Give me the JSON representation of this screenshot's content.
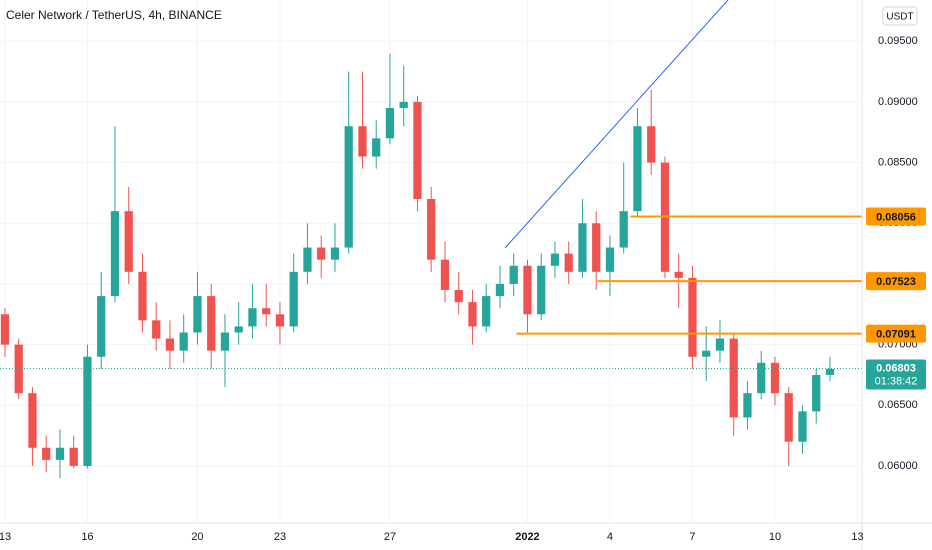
{
  "chart_data": {
    "type": "candlestick",
    "title": "Celer Network / TetherUS, 4h, BINANCE",
    "currency": "USDT",
    "up_color": "#26a69a",
    "down_color": "#ef5350",
    "grid": true,
    "x": [
      0,
      1,
      2,
      3,
      4,
      5,
      6,
      7,
      8,
      9,
      10,
      11,
      12,
      13,
      14,
      15,
      16,
      17,
      18,
      19,
      20,
      21,
      22,
      23,
      24,
      25,
      26,
      27,
      28,
      29,
      30,
      31,
      32,
      33,
      34,
      35,
      36,
      37,
      38,
      39,
      40,
      41,
      42,
      43,
      44,
      45,
      46,
      47,
      48,
      49,
      50,
      51,
      52,
      53,
      54,
      55,
      56,
      57,
      58,
      59,
      60
    ],
    "open": [
      0.0725,
      0.07,
      0.066,
      0.0615,
      0.0605,
      0.0615,
      0.06,
      0.069,
      0.074,
      0.081,
      0.076,
      0.072,
      0.0705,
      0.0695,
      0.071,
      0.074,
      0.0695,
      0.071,
      0.0715,
      0.073,
      0.0725,
      0.0715,
      0.076,
      0.078,
      0.077,
      0.078,
      0.088,
      0.0855,
      0.087,
      0.0895,
      0.09,
      0.082,
      0.077,
      0.0745,
      0.0735,
      0.0715,
      0.074,
      0.075,
      0.0765,
      0.0725,
      0.0765,
      0.0775,
      0.076,
      0.08,
      0.076,
      0.078,
      0.081,
      0.088,
      0.085,
      0.076,
      0.0755,
      0.069,
      0.0695,
      0.0705,
      0.064,
      0.066,
      0.0685,
      0.066,
      0.062,
      0.0645,
      0.0675
    ],
    "high": [
      0.073,
      0.0705,
      0.0665,
      0.0625,
      0.063,
      0.0625,
      0.07,
      0.076,
      0.088,
      0.083,
      0.0775,
      0.0735,
      0.072,
      0.0725,
      0.076,
      0.075,
      0.0725,
      0.0735,
      0.075,
      0.075,
      0.0735,
      0.0775,
      0.08,
      0.079,
      0.08,
      0.0925,
      0.0925,
      0.0885,
      0.094,
      0.093,
      0.0905,
      0.083,
      0.0785,
      0.076,
      0.0745,
      0.075,
      0.0765,
      0.0775,
      0.077,
      0.0775,
      0.0785,
      0.0785,
      0.082,
      0.081,
      0.079,
      0.085,
      0.0895,
      0.091,
      0.0855,
      0.0775,
      0.0765,
      0.0715,
      0.072,
      0.071,
      0.067,
      0.0695,
      0.069,
      0.0665,
      0.065,
      0.068,
      0.069
    ],
    "low": [
      0.069,
      0.0655,
      0.06,
      0.0595,
      0.059,
      0.0598,
      0.0598,
      0.068,
      0.0735,
      0.075,
      0.071,
      0.0695,
      0.068,
      0.0685,
      0.07,
      0.068,
      0.0665,
      0.07,
      0.0705,
      0.0715,
      0.07,
      0.071,
      0.075,
      0.0755,
      0.076,
      0.0775,
      0.0845,
      0.0845,
      0.0865,
      0.088,
      0.081,
      0.076,
      0.0735,
      0.0725,
      0.07,
      0.071,
      0.073,
      0.074,
      0.071,
      0.072,
      0.0755,
      0.075,
      0.0755,
      0.0745,
      0.074,
      0.0775,
      0.0805,
      0.084,
      0.0755,
      0.073,
      0.068,
      0.067,
      0.0685,
      0.0625,
      0.063,
      0.0655,
      0.065,
      0.06,
      0.061,
      0.0635,
      0.067
    ],
    "close": [
      0.07,
      0.066,
      0.0615,
      0.0605,
      0.0615,
      0.06,
      0.069,
      0.074,
      0.081,
      0.076,
      0.072,
      0.0705,
      0.0695,
      0.071,
      0.074,
      0.0695,
      0.071,
      0.0715,
      0.073,
      0.0725,
      0.0715,
      0.076,
      0.078,
      0.077,
      0.078,
      0.088,
      0.0855,
      0.087,
      0.0895,
      0.09,
      0.082,
      0.077,
      0.0745,
      0.0735,
      0.0715,
      0.074,
      0.075,
      0.0765,
      0.0725,
      0.0765,
      0.0775,
      0.076,
      0.08,
      0.076,
      0.078,
      0.081,
      0.088,
      0.085,
      0.076,
      0.0755,
      0.069,
      0.0695,
      0.0705,
      0.064,
      0.066,
      0.0685,
      0.066,
      0.062,
      0.0645,
      0.0675,
      0.068
    ],
    "xlim": [
      -0.36,
      62.33
    ],
    "xticks": [
      {
        "value": 0,
        "label": "13"
      },
      {
        "value": 6,
        "label": "16"
      },
      {
        "value": 14,
        "label": "20"
      },
      {
        "value": 20,
        "label": "23"
      },
      {
        "value": 28,
        "label": "27"
      },
      {
        "value": 38,
        "label": "2022"
      },
      {
        "value": 44,
        "label": "4"
      },
      {
        "value": 50,
        "label": "7"
      },
      {
        "value": 56,
        "label": "10"
      },
      {
        "value": 62,
        "label": "13"
      }
    ],
    "ylim": [
      0.0553,
      0.0984
    ],
    "yticks": [
      {
        "value": 0.06,
        "label": "0.06000"
      },
      {
        "value": 0.065,
        "label": "0.06500"
      },
      {
        "value": 0.07,
        "label": "0.07000"
      },
      {
        "value": 0.075,
        "label": "0.07500"
      },
      {
        "value": 0.08,
        "label": "0.08000"
      },
      {
        "value": 0.085,
        "label": "0.08500"
      },
      {
        "value": 0.09,
        "label": "0.09000"
      },
      {
        "value": 0.095,
        "label": "0.09500"
      }
    ],
    "levels": [
      {
        "value": 0.08056,
        "start": 45.5,
        "color": "#ff9800"
      },
      {
        "value": 0.07523,
        "start": 43.1,
        "color": "#ff9800"
      },
      {
        "value": 0.07091,
        "start": 37.2,
        "color": "#ff9800"
      }
    ],
    "last": {
      "value": 0.06803,
      "countdown": "01:38:42",
      "color": "#26a69a"
    }
  }
}
